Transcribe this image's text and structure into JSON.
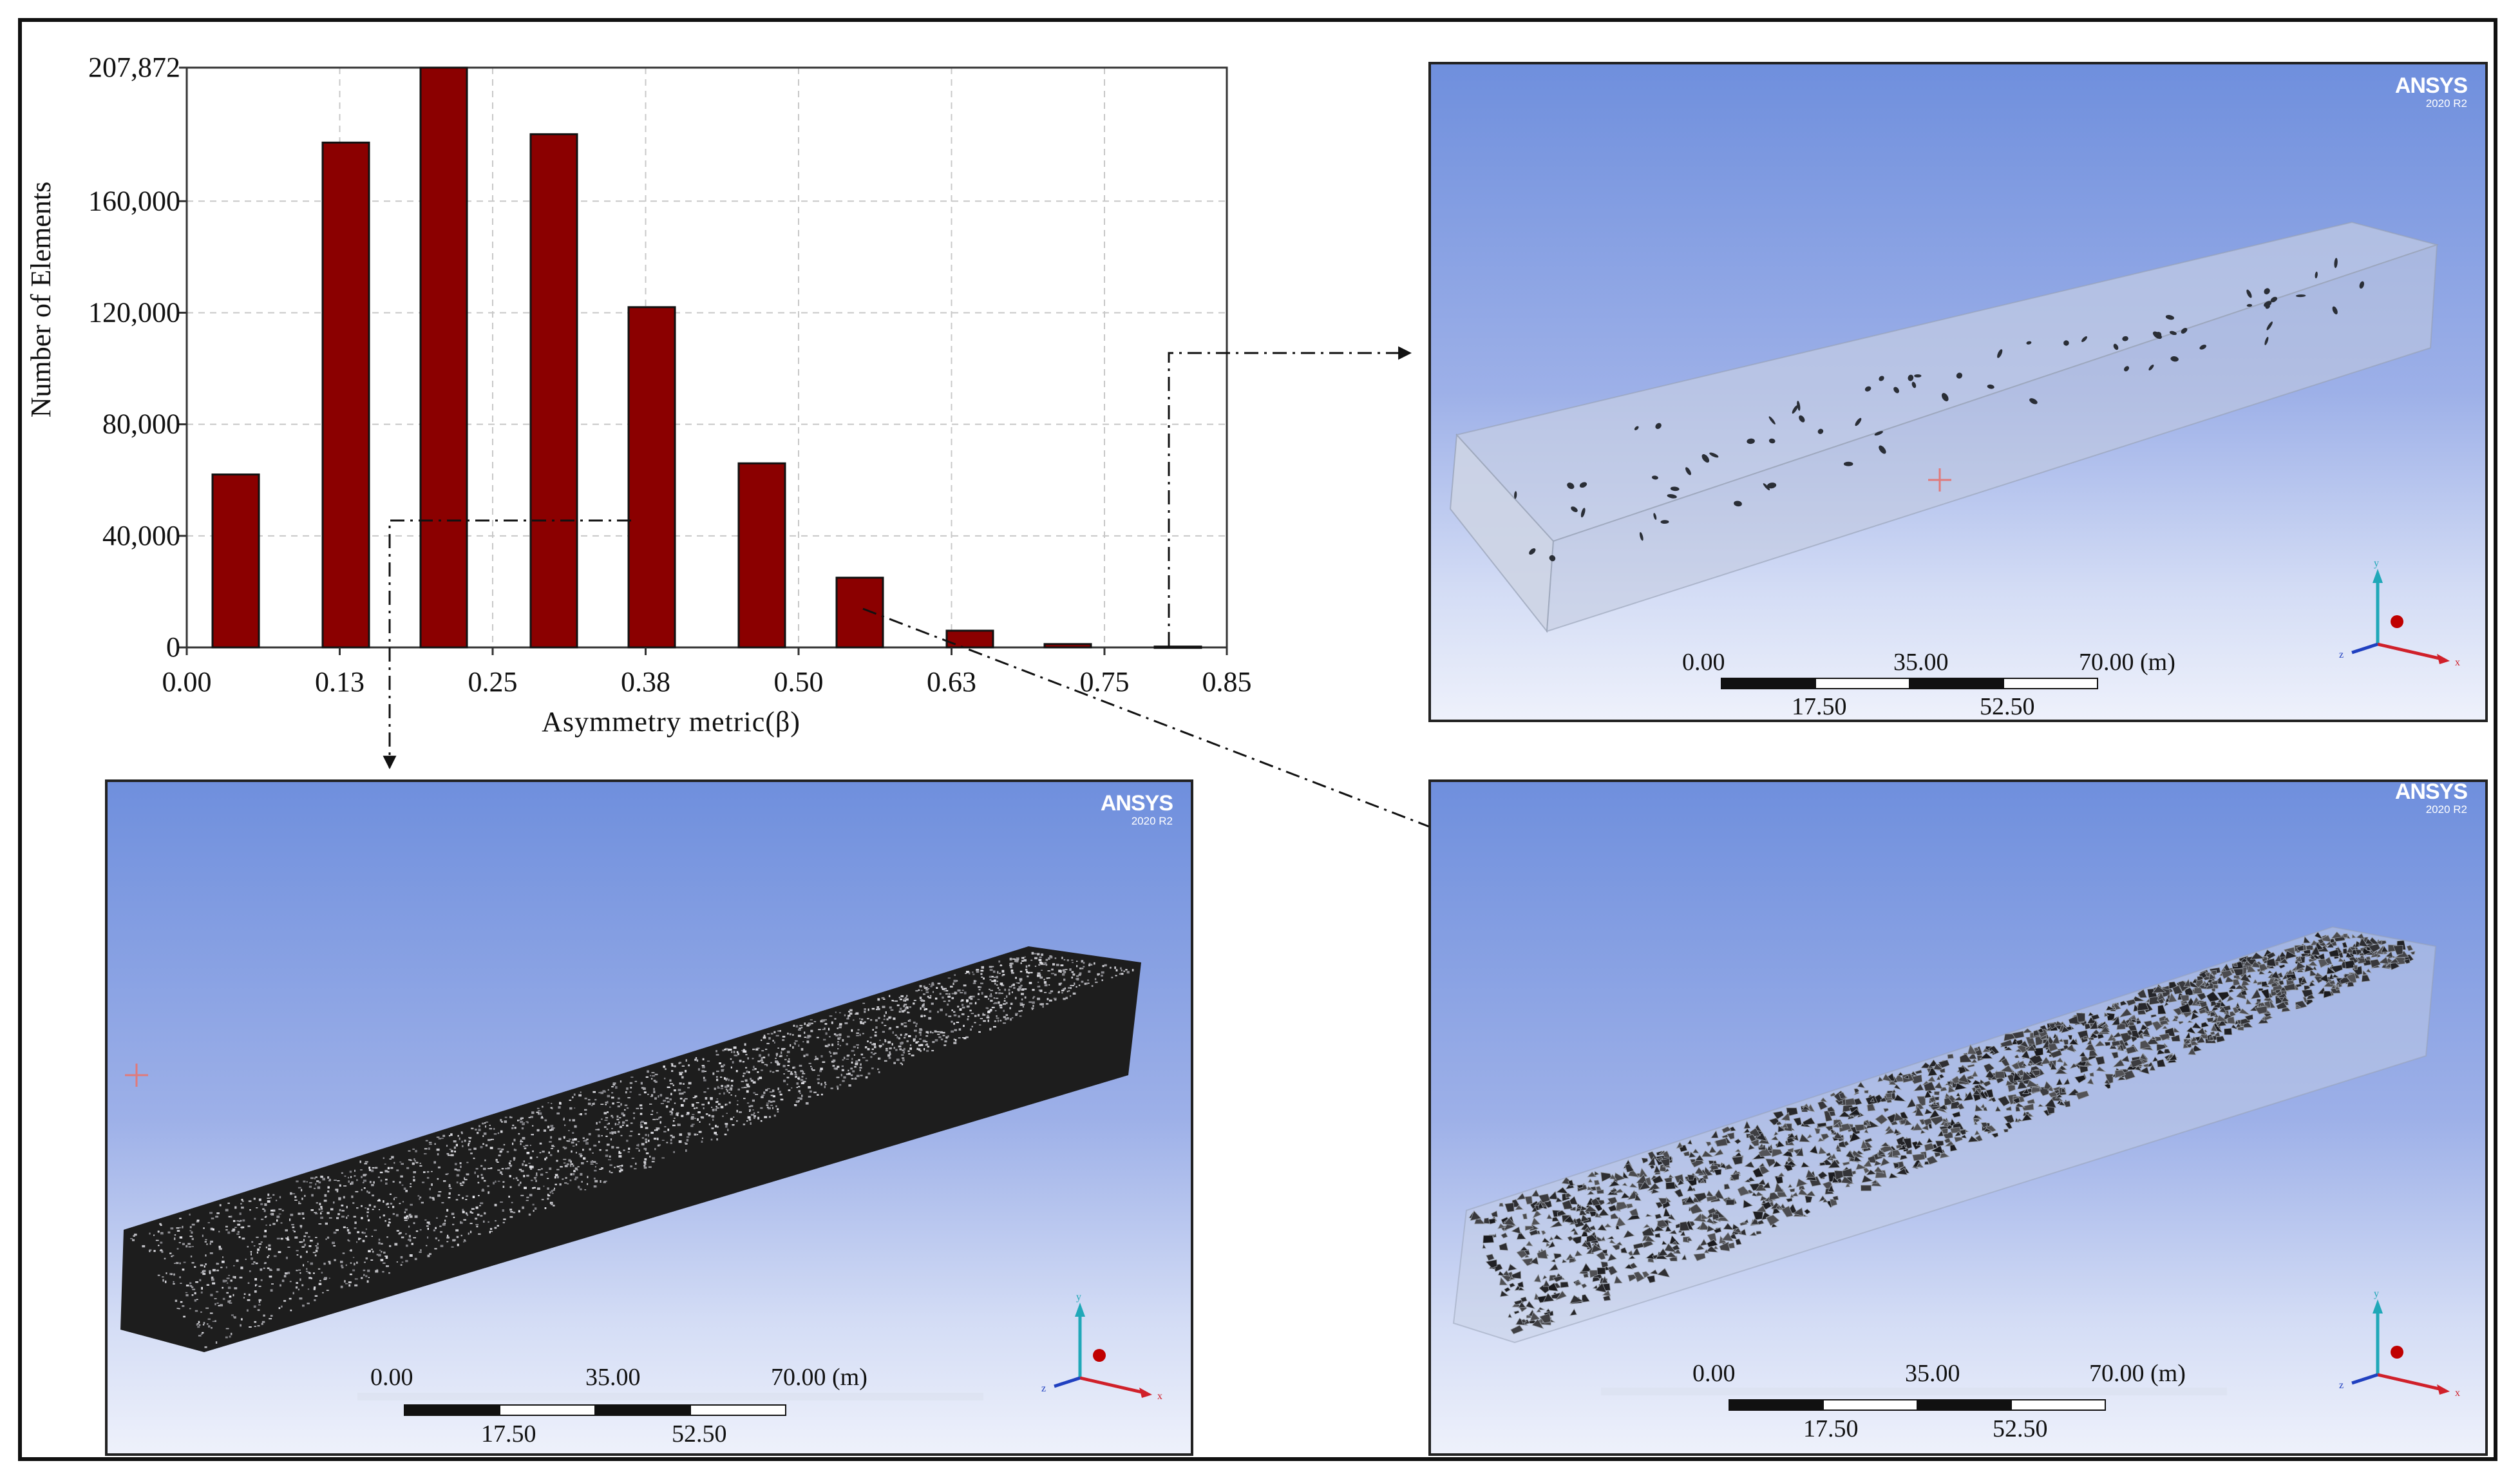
{
  "chart_data": {
    "type": "bar",
    "xlabel": "Asymmetry metric(β)",
    "ylabel": "Number of Elements",
    "x_ticks": [
      "0.00",
      "0.13",
      "0.25",
      "0.38",
      "0.50",
      "0.63",
      "0.75",
      "0.85"
    ],
    "y_ticks": [
      "0",
      "40,000",
      "80,000",
      "120,000",
      "160,000",
      "207,872"
    ],
    "y_tick_values": [
      0,
      40000,
      80000,
      120000,
      160000,
      207872
    ],
    "ylim": [
      0,
      207872
    ],
    "xlim": [
      0,
      0.85
    ],
    "grid": true,
    "bar_color": "#8b0000",
    "bars": [
      {
        "x": 0.04,
        "value": 62000
      },
      {
        "x": 0.13,
        "value": 181000
      },
      {
        "x": 0.21,
        "value": 207872
      },
      {
        "x": 0.3,
        "value": 184000
      },
      {
        "x": 0.38,
        "value": 122000
      },
      {
        "x": 0.47,
        "value": 66000
      },
      {
        "x": 0.55,
        "value": 25000
      },
      {
        "x": 0.64,
        "value": 6000
      },
      {
        "x": 0.72,
        "value": 1200
      },
      {
        "x": 0.81,
        "value": 300
      }
    ]
  },
  "panels": {
    "top_right": {
      "logo": "ANSYS",
      "version": "2020 R2",
      "scale": {
        "l0": "0.00",
        "l1": "35.00",
        "l2": "70.00 (m)",
        "m1": "17.50",
        "m2": "52.50"
      }
    },
    "bottom_left": {
      "logo": "ANSYS",
      "version": "2020 R2",
      "scale": {
        "l0": "0.00",
        "l1": "35.00",
        "l2": "70.00 (m)",
        "m1": "17.50",
        "m2": "52.50"
      }
    },
    "bottom_right": {
      "logo": "ANSYS",
      "version": "2020 R2",
      "scale": {
        "l0": "0.00",
        "l1": "35.00",
        "l2": "70.00 (m)",
        "m1": "17.50",
        "m2": "52.50"
      }
    }
  },
  "axes_triad": {
    "x_label": "x",
    "y_label": "y",
    "z_label": "z",
    "x_color": "#d0202a",
    "y_color": "#20a8b8",
    "z_color": "#2040c0"
  }
}
